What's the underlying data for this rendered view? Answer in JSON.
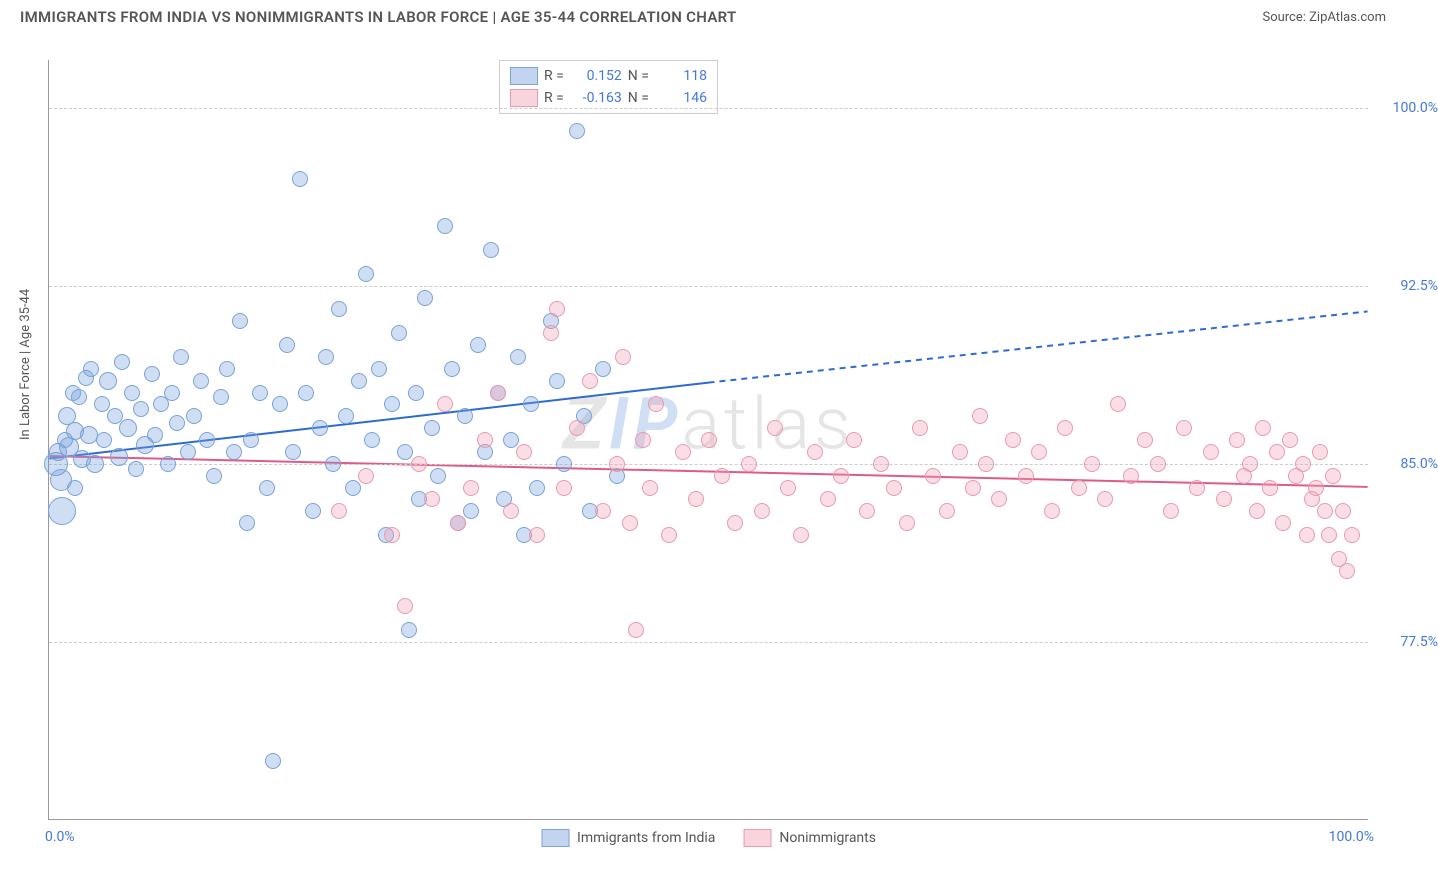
{
  "title": "IMMIGRANTS FROM INDIA VS NONIMMIGRANTS IN LABOR FORCE | AGE 35-44 CORRELATION CHART",
  "source": "Source: ZipAtlas.com",
  "y_axis_label": "In Labor Force | Age 35-44",
  "watermark": {
    "z": "Z",
    "ip": "IP",
    "rest": "atlas"
  },
  "chart": {
    "type": "scatter",
    "background_color": "#ffffff",
    "grid_color": "#cccccc",
    "axis_color": "#999999",
    "xlim": [
      0,
      100
    ],
    "ylim": [
      70,
      102
    ],
    "yticks": [
      77.5,
      85.0,
      92.5,
      100.0
    ],
    "ytick_labels": [
      "77.5%",
      "85.0%",
      "92.5%",
      "100.0%"
    ],
    "xtick_labels": {
      "min": "0.0%",
      "max": "100.0%"
    },
    "label_color": "#4478d8",
    "label_fontsize": 14
  },
  "series": {
    "immigrants": {
      "label": "Immigrants from India",
      "color_fill": "rgba(120,160,220,0.35)",
      "color_stroke": "#7aa3d8",
      "trend_color": "#2e6bd0",
      "trend_width": 2,
      "R": "0.152",
      "N": "118",
      "trend": {
        "x1": 0,
        "y1": 85.2,
        "x2": 50,
        "y2": 88.4,
        "x3": 100,
        "y3": 91.4,
        "dash_after": 50
      },
      "points": [
        {
          "x": 0.5,
          "y": 85.0,
          "r": 12
        },
        {
          "x": 0.7,
          "y": 85.5,
          "r": 9
        },
        {
          "x": 0.9,
          "y": 84.3,
          "r": 11
        },
        {
          "x": 1.0,
          "y": 83.0,
          "r": 14
        },
        {
          "x": 1.2,
          "y": 86.0,
          "r": 8
        },
        {
          "x": 1.4,
          "y": 87.0,
          "r": 9
        },
        {
          "x": 1.5,
          "y": 85.7,
          "r": 10
        },
        {
          "x": 1.8,
          "y": 88.0,
          "r": 8
        },
        {
          "x": 2.0,
          "y": 86.4,
          "r": 9
        },
        {
          "x": 2.0,
          "y": 84.0,
          "r": 8
        },
        {
          "x": 2.3,
          "y": 87.8,
          "r": 8
        },
        {
          "x": 2.5,
          "y": 85.2,
          "r": 9
        },
        {
          "x": 2.8,
          "y": 88.6,
          "r": 8
        },
        {
          "x": 3.0,
          "y": 86.2,
          "r": 9
        },
        {
          "x": 3.2,
          "y": 89.0,
          "r": 8
        },
        {
          "x": 3.5,
          "y": 85.0,
          "r": 9
        },
        {
          "x": 4.0,
          "y": 87.5,
          "r": 8
        },
        {
          "x": 4.2,
          "y": 86.0,
          "r": 8
        },
        {
          "x": 4.5,
          "y": 88.5,
          "r": 9
        },
        {
          "x": 5.0,
          "y": 87.0,
          "r": 8
        },
        {
          "x": 5.3,
          "y": 85.3,
          "r": 9
        },
        {
          "x": 5.5,
          "y": 89.3,
          "r": 8
        },
        {
          "x": 6.0,
          "y": 86.5,
          "r": 9
        },
        {
          "x": 6.3,
          "y": 88.0,
          "r": 8
        },
        {
          "x": 6.6,
          "y": 84.8,
          "r": 8
        },
        {
          "x": 7.0,
          "y": 87.3,
          "r": 8
        },
        {
          "x": 7.3,
          "y": 85.8,
          "r": 9
        },
        {
          "x": 7.8,
          "y": 88.8,
          "r": 8
        },
        {
          "x": 8.0,
          "y": 86.2,
          "r": 8
        },
        {
          "x": 8.5,
          "y": 87.5,
          "r": 8
        },
        {
          "x": 9.0,
          "y": 85.0,
          "r": 8
        },
        {
          "x": 9.3,
          "y": 88.0,
          "r": 8
        },
        {
          "x": 9.7,
          "y": 86.7,
          "r": 8
        },
        {
          "x": 10.0,
          "y": 89.5,
          "r": 8
        },
        {
          "x": 10.5,
          "y": 85.5,
          "r": 8
        },
        {
          "x": 11.0,
          "y": 87.0,
          "r": 8
        },
        {
          "x": 11.5,
          "y": 88.5,
          "r": 8
        },
        {
          "x": 12.0,
          "y": 86.0,
          "r": 8
        },
        {
          "x": 12.5,
          "y": 84.5,
          "r": 8
        },
        {
          "x": 13.0,
          "y": 87.8,
          "r": 8
        },
        {
          "x": 13.5,
          "y": 89.0,
          "r": 8
        },
        {
          "x": 14.0,
          "y": 85.5,
          "r": 8
        },
        {
          "x": 14.5,
          "y": 91.0,
          "r": 8
        },
        {
          "x": 15.0,
          "y": 82.5,
          "r": 8
        },
        {
          "x": 15.3,
          "y": 86.0,
          "r": 8
        },
        {
          "x": 16.0,
          "y": 88.0,
          "r": 8
        },
        {
          "x": 16.5,
          "y": 84.0,
          "r": 8
        },
        {
          "x": 17.0,
          "y": 72.5,
          "r": 8
        },
        {
          "x": 17.5,
          "y": 87.5,
          "r": 8
        },
        {
          "x": 18.0,
          "y": 90.0,
          "r": 8
        },
        {
          "x": 18.5,
          "y": 85.5,
          "r": 8
        },
        {
          "x": 19.0,
          "y": 97.0,
          "r": 8
        },
        {
          "x": 19.5,
          "y": 88.0,
          "r": 8
        },
        {
          "x": 20.0,
          "y": 83.0,
          "r": 8
        },
        {
          "x": 20.5,
          "y": 86.5,
          "r": 8
        },
        {
          "x": 21.0,
          "y": 89.5,
          "r": 8
        },
        {
          "x": 21.5,
          "y": 85.0,
          "r": 8
        },
        {
          "x": 22.0,
          "y": 91.5,
          "r": 8
        },
        {
          "x": 22.5,
          "y": 87.0,
          "r": 8
        },
        {
          "x": 23.0,
          "y": 84.0,
          "r": 8
        },
        {
          "x": 23.5,
          "y": 88.5,
          "r": 8
        },
        {
          "x": 24.0,
          "y": 93.0,
          "r": 8
        },
        {
          "x": 24.5,
          "y": 86.0,
          "r": 8
        },
        {
          "x": 25.0,
          "y": 89.0,
          "r": 8
        },
        {
          "x": 25.5,
          "y": 82.0,
          "r": 8
        },
        {
          "x": 26.0,
          "y": 87.5,
          "r": 8
        },
        {
          "x": 26.5,
          "y": 90.5,
          "r": 8
        },
        {
          "x": 27.0,
          "y": 85.5,
          "r": 8
        },
        {
          "x": 27.3,
          "y": 78.0,
          "r": 8
        },
        {
          "x": 27.8,
          "y": 88.0,
          "r": 8
        },
        {
          "x": 28.0,
          "y": 83.5,
          "r": 8
        },
        {
          "x": 28.5,
          "y": 92.0,
          "r": 8
        },
        {
          "x": 29.0,
          "y": 86.5,
          "r": 8
        },
        {
          "x": 29.5,
          "y": 84.5,
          "r": 8
        },
        {
          "x": 30.0,
          "y": 95.0,
          "r": 8
        },
        {
          "x": 30.5,
          "y": 89.0,
          "r": 8
        },
        {
          "x": 31.0,
          "y": 82.5,
          "r": 8
        },
        {
          "x": 31.5,
          "y": 87.0,
          "r": 8
        },
        {
          "x": 32.0,
          "y": 83.0,
          "r": 8
        },
        {
          "x": 32.5,
          "y": 90.0,
          "r": 8
        },
        {
          "x": 33.0,
          "y": 85.5,
          "r": 8
        },
        {
          "x": 33.5,
          "y": 94.0,
          "r": 8
        },
        {
          "x": 34.0,
          "y": 88.0,
          "r": 8
        },
        {
          "x": 34.5,
          "y": 83.5,
          "r": 8
        },
        {
          "x": 35.0,
          "y": 86.0,
          "r": 8
        },
        {
          "x": 35.5,
          "y": 89.5,
          "r": 8
        },
        {
          "x": 36.0,
          "y": 82.0,
          "r": 8
        },
        {
          "x": 36.5,
          "y": 87.5,
          "r": 8
        },
        {
          "x": 37.0,
          "y": 84.0,
          "r": 8
        },
        {
          "x": 38.0,
          "y": 91.0,
          "r": 8
        },
        {
          "x": 38.5,
          "y": 88.5,
          "r": 8
        },
        {
          "x": 39.0,
          "y": 85.0,
          "r": 8
        },
        {
          "x": 40.0,
          "y": 99.0,
          "r": 8
        },
        {
          "x": 40.5,
          "y": 87.0,
          "r": 8
        },
        {
          "x": 41.0,
          "y": 83.0,
          "r": 8
        },
        {
          "x": 42.0,
          "y": 89.0,
          "r": 8
        },
        {
          "x": 43.0,
          "y": 84.5,
          "r": 8
        }
      ]
    },
    "nonimmigrants": {
      "label": "Nonimmigrants",
      "color_fill": "rgba(240,160,180,0.35)",
      "color_stroke": "#e89ab0",
      "trend_color": "#e05a88",
      "trend_width": 2,
      "R": "-0.163",
      "N": "146",
      "trend": {
        "x1": 0,
        "y1": 85.3,
        "x2": 100,
        "y2": 84.0
      },
      "points": [
        {
          "x": 22,
          "y": 83.0,
          "r": 8
        },
        {
          "x": 24,
          "y": 84.5,
          "r": 8
        },
        {
          "x": 26,
          "y": 82.0,
          "r": 8
        },
        {
          "x": 27,
          "y": 79.0,
          "r": 8
        },
        {
          "x": 28,
          "y": 85.0,
          "r": 8
        },
        {
          "x": 29,
          "y": 83.5,
          "r": 8
        },
        {
          "x": 30,
          "y": 87.5,
          "r": 8
        },
        {
          "x": 31,
          "y": 82.5,
          "r": 8
        },
        {
          "x": 32,
          "y": 84.0,
          "r": 8
        },
        {
          "x": 33,
          "y": 86.0,
          "r": 8
        },
        {
          "x": 34,
          "y": 88.0,
          "r": 8
        },
        {
          "x": 35,
          "y": 83.0,
          "r": 8
        },
        {
          "x": 36,
          "y": 85.5,
          "r": 8
        },
        {
          "x": 37,
          "y": 82.0,
          "r": 8
        },
        {
          "x": 38,
          "y": 90.5,
          "r": 8
        },
        {
          "x": 38.5,
          "y": 91.5,
          "r": 8
        },
        {
          "x": 39,
          "y": 84.0,
          "r": 8
        },
        {
          "x": 40,
          "y": 86.5,
          "r": 8
        },
        {
          "x": 41,
          "y": 88.5,
          "r": 8
        },
        {
          "x": 42,
          "y": 83.0,
          "r": 8
        },
        {
          "x": 43,
          "y": 85.0,
          "r": 8
        },
        {
          "x": 43.5,
          "y": 89.5,
          "r": 8
        },
        {
          "x": 44,
          "y": 82.5,
          "r": 8
        },
        {
          "x": 44.5,
          "y": 78.0,
          "r": 8
        },
        {
          "x": 45,
          "y": 86.0,
          "r": 8
        },
        {
          "x": 45.5,
          "y": 84.0,
          "r": 8
        },
        {
          "x": 46,
          "y": 87.5,
          "r": 8
        },
        {
          "x": 47,
          "y": 82.0,
          "r": 8
        },
        {
          "x": 48,
          "y": 85.5,
          "r": 8
        },
        {
          "x": 49,
          "y": 83.5,
          "r": 8
        },
        {
          "x": 50,
          "y": 86.0,
          "r": 8
        },
        {
          "x": 51,
          "y": 84.5,
          "r": 8
        },
        {
          "x": 52,
          "y": 82.5,
          "r": 8
        },
        {
          "x": 53,
          "y": 85.0,
          "r": 8
        },
        {
          "x": 54,
          "y": 83.0,
          "r": 8
        },
        {
          "x": 55,
          "y": 86.5,
          "r": 8
        },
        {
          "x": 56,
          "y": 84.0,
          "r": 8
        },
        {
          "x": 57,
          "y": 82.0,
          "r": 8
        },
        {
          "x": 58,
          "y": 85.5,
          "r": 8
        },
        {
          "x": 59,
          "y": 83.5,
          "r": 8
        },
        {
          "x": 60,
          "y": 84.5,
          "r": 8
        },
        {
          "x": 61,
          "y": 86.0,
          "r": 8
        },
        {
          "x": 62,
          "y": 83.0,
          "r": 8
        },
        {
          "x": 63,
          "y": 85.0,
          "r": 8
        },
        {
          "x": 64,
          "y": 84.0,
          "r": 8
        },
        {
          "x": 65,
          "y": 82.5,
          "r": 8
        },
        {
          "x": 66,
          "y": 86.5,
          "r": 8
        },
        {
          "x": 67,
          "y": 84.5,
          "r": 8
        },
        {
          "x": 68,
          "y": 83.0,
          "r": 8
        },
        {
          "x": 69,
          "y": 85.5,
          "r": 8
        },
        {
          "x": 70,
          "y": 84.0,
          "r": 8
        },
        {
          "x": 70.5,
          "y": 87.0,
          "r": 8
        },
        {
          "x": 71,
          "y": 85.0,
          "r": 8
        },
        {
          "x": 72,
          "y": 83.5,
          "r": 8
        },
        {
          "x": 73,
          "y": 86.0,
          "r": 8
        },
        {
          "x": 74,
          "y": 84.5,
          "r": 8
        },
        {
          "x": 75,
          "y": 85.5,
          "r": 8
        },
        {
          "x": 76,
          "y": 83.0,
          "r": 8
        },
        {
          "x": 77,
          "y": 86.5,
          "r": 8
        },
        {
          "x": 78,
          "y": 84.0,
          "r": 8
        },
        {
          "x": 79,
          "y": 85.0,
          "r": 8
        },
        {
          "x": 80,
          "y": 83.5,
          "r": 8
        },
        {
          "x": 81,
          "y": 87.5,
          "r": 8
        },
        {
          "x": 82,
          "y": 84.5,
          "r": 8
        },
        {
          "x": 83,
          "y": 86.0,
          "r": 8
        },
        {
          "x": 84,
          "y": 85.0,
          "r": 8
        },
        {
          "x": 85,
          "y": 83.0,
          "r": 8
        },
        {
          "x": 86,
          "y": 86.5,
          "r": 8
        },
        {
          "x": 87,
          "y": 84.0,
          "r": 8
        },
        {
          "x": 88,
          "y": 85.5,
          "r": 8
        },
        {
          "x": 89,
          "y": 83.5,
          "r": 8
        },
        {
          "x": 90,
          "y": 86.0,
          "r": 8
        },
        {
          "x": 90.5,
          "y": 84.5,
          "r": 8
        },
        {
          "x": 91,
          "y": 85.0,
          "r": 8
        },
        {
          "x": 91.5,
          "y": 83.0,
          "r": 8
        },
        {
          "x": 92,
          "y": 86.5,
          "r": 8
        },
        {
          "x": 92.5,
          "y": 84.0,
          "r": 8
        },
        {
          "x": 93,
          "y": 85.5,
          "r": 8
        },
        {
          "x": 93.5,
          "y": 82.5,
          "r": 8
        },
        {
          "x": 94,
          "y": 86.0,
          "r": 8
        },
        {
          "x": 94.5,
          "y": 84.5,
          "r": 8
        },
        {
          "x": 95,
          "y": 85.0,
          "r": 8
        },
        {
          "x": 95.3,
          "y": 82.0,
          "r": 8
        },
        {
          "x": 95.7,
          "y": 83.5,
          "r": 8
        },
        {
          "x": 96,
          "y": 84.0,
          "r": 8
        },
        {
          "x": 96.3,
          "y": 85.5,
          "r": 8
        },
        {
          "x": 96.7,
          "y": 83.0,
          "r": 8
        },
        {
          "x": 97,
          "y": 82.0,
          "r": 8
        },
        {
          "x": 97.3,
          "y": 84.5,
          "r": 8
        },
        {
          "x": 97.7,
          "y": 81.0,
          "r": 8
        },
        {
          "x": 98,
          "y": 83.0,
          "r": 8
        },
        {
          "x": 98.3,
          "y": 80.5,
          "r": 8
        },
        {
          "x": 98.7,
          "y": 82.0,
          "r": 8
        }
      ]
    }
  },
  "legend_top": {
    "rows": [
      {
        "swatch_fill": "rgba(120,160,220,0.45)",
        "swatch_stroke": "#7aa3d8",
        "R_label": "R =",
        "R": "0.152",
        "N_label": "N =",
        "N": "118"
      },
      {
        "swatch_fill": "rgba(240,160,180,0.45)",
        "swatch_stroke": "#e89ab0",
        "R_label": "R =",
        "R": "-0.163",
        "N_label": "N =",
        "N": "146"
      }
    ]
  },
  "legend_bottom": [
    {
      "swatch_fill": "rgba(120,160,220,0.45)",
      "swatch_stroke": "#7aa3d8",
      "label": "Immigrants from India"
    },
    {
      "swatch_fill": "rgba(240,160,180,0.45)",
      "swatch_stroke": "#e89ab0",
      "label": "Nonimmigrants"
    }
  ]
}
